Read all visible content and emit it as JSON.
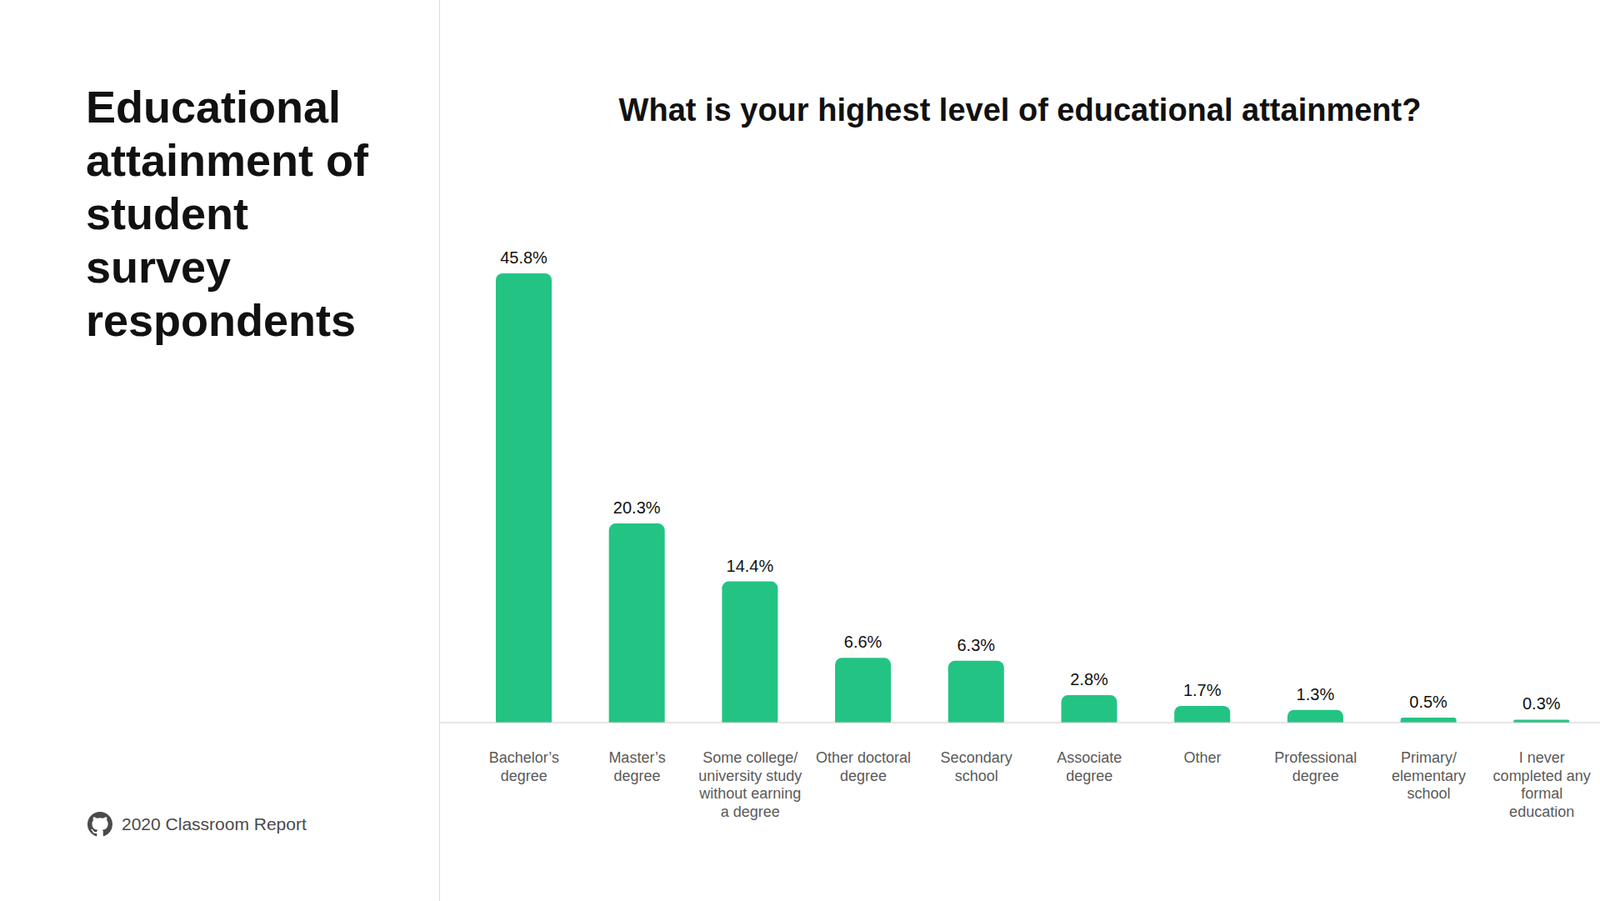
{
  "chart_data": {
    "type": "bar",
    "title": "What is your highest level of educational attainment?",
    "categories": [
      "Bachelor’s degree",
      "Master’s degree",
      "Some college/ university study without earning a degree",
      "Other doctoral degree",
      "Secondary school",
      "Associate degree",
      "Other",
      "Professional degree",
      "Primary/ elementary school",
      "I never completed any formal education"
    ],
    "values": [
      45.8,
      20.3,
      14.4,
      6.6,
      6.3,
      2.8,
      1.7,
      1.3,
      0.5,
      0.3
    ],
    "value_labels": [
      "45.8%",
      "20.3%",
      "14.4%",
      "6.6%",
      "6.3%",
      "2.8%",
      "1.7%",
      "1.3%",
      "0.5%",
      "0.3%"
    ],
    "color": "#23c483",
    "data_labels": true,
    "tick_labels": "x",
    "grid": false
  },
  "page": {
    "heading": "Educational attainment of student survey respondents",
    "footer": "2020 Classroom Report"
  }
}
